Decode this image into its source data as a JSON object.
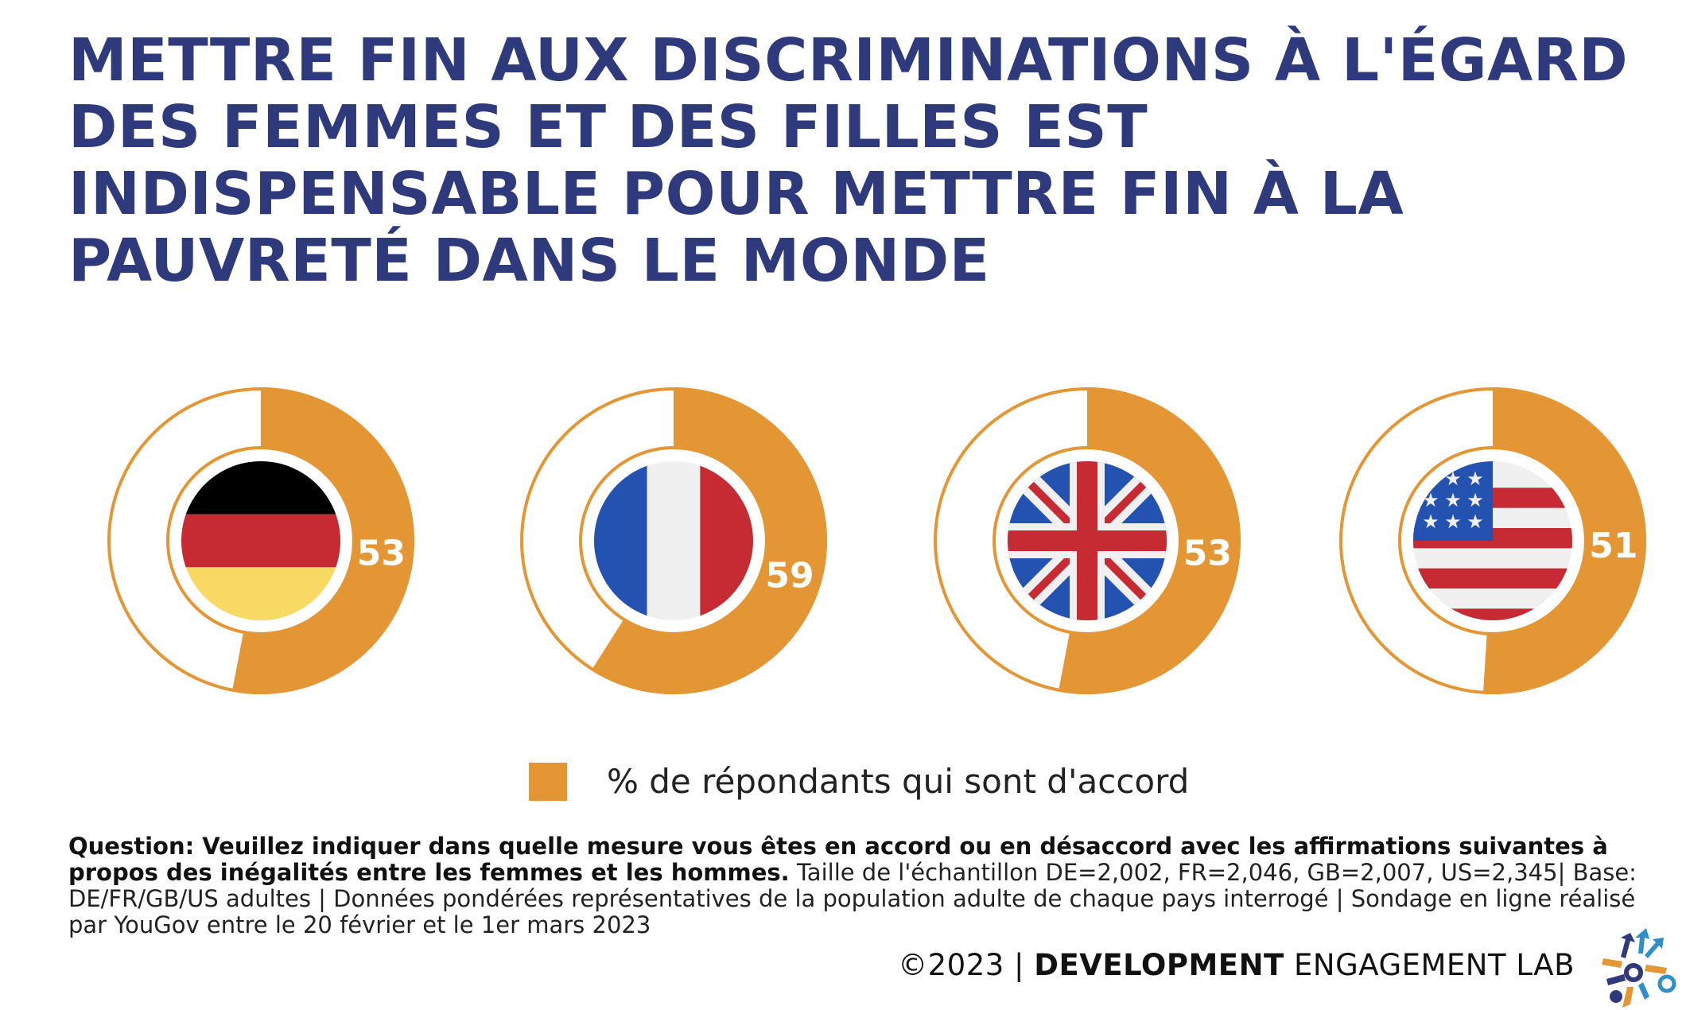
{
  "title": "METTRE FIN AUX DISCRIMINATIONS À L'ÉGARD DES FEMMES ET DES FILLES EST INDISPENSABLE POUR METTRE FIN À LA PAUVRETÉ DANS LE MONDE",
  "colors": {
    "accent": "#e49634",
    "title": "#2e3a7c",
    "remainder": "#ffffff"
  },
  "chart_data": {
    "type": "pie",
    "variant": "donut",
    "categories": [
      "DE",
      "FR",
      "GB",
      "US"
    ],
    "flags": [
      "germany-flag",
      "france-flag",
      "uk-flag",
      "us-flag"
    ],
    "values": [
      53,
      59,
      53,
      51
    ],
    "value_labels": [
      "53",
      "59",
      "53",
      "51"
    ],
    "unit": "%",
    "max": 100,
    "legend": [
      "% de répondants qui sont d'accord"
    ],
    "legend_placement": "bottom"
  },
  "legend": {
    "label": "% de répondants qui sont d'accord"
  },
  "footnote": {
    "question": "Question: Veuillez indiquer dans quelle mesure vous êtes en accord ou en désaccord avec les affirmations suivantes à propos des inégalités entre les femmes et les hommes.",
    "details": " Taille de l'échantillon DE=2,002, FR=2,046, GB=2,007, US=2,345| Base: DE/FR/GB/US adultes | Données pondérées représentatives de la population adulte de chaque pays interrogé | Sondage en ligne réalisé par YouGov entre le 20 février et le 1er mars 2023"
  },
  "credit": {
    "year": "©2023 | ",
    "org_bold": "DEVELOPMENT",
    "org_rest": " ENGAGEMENT LAB"
  }
}
